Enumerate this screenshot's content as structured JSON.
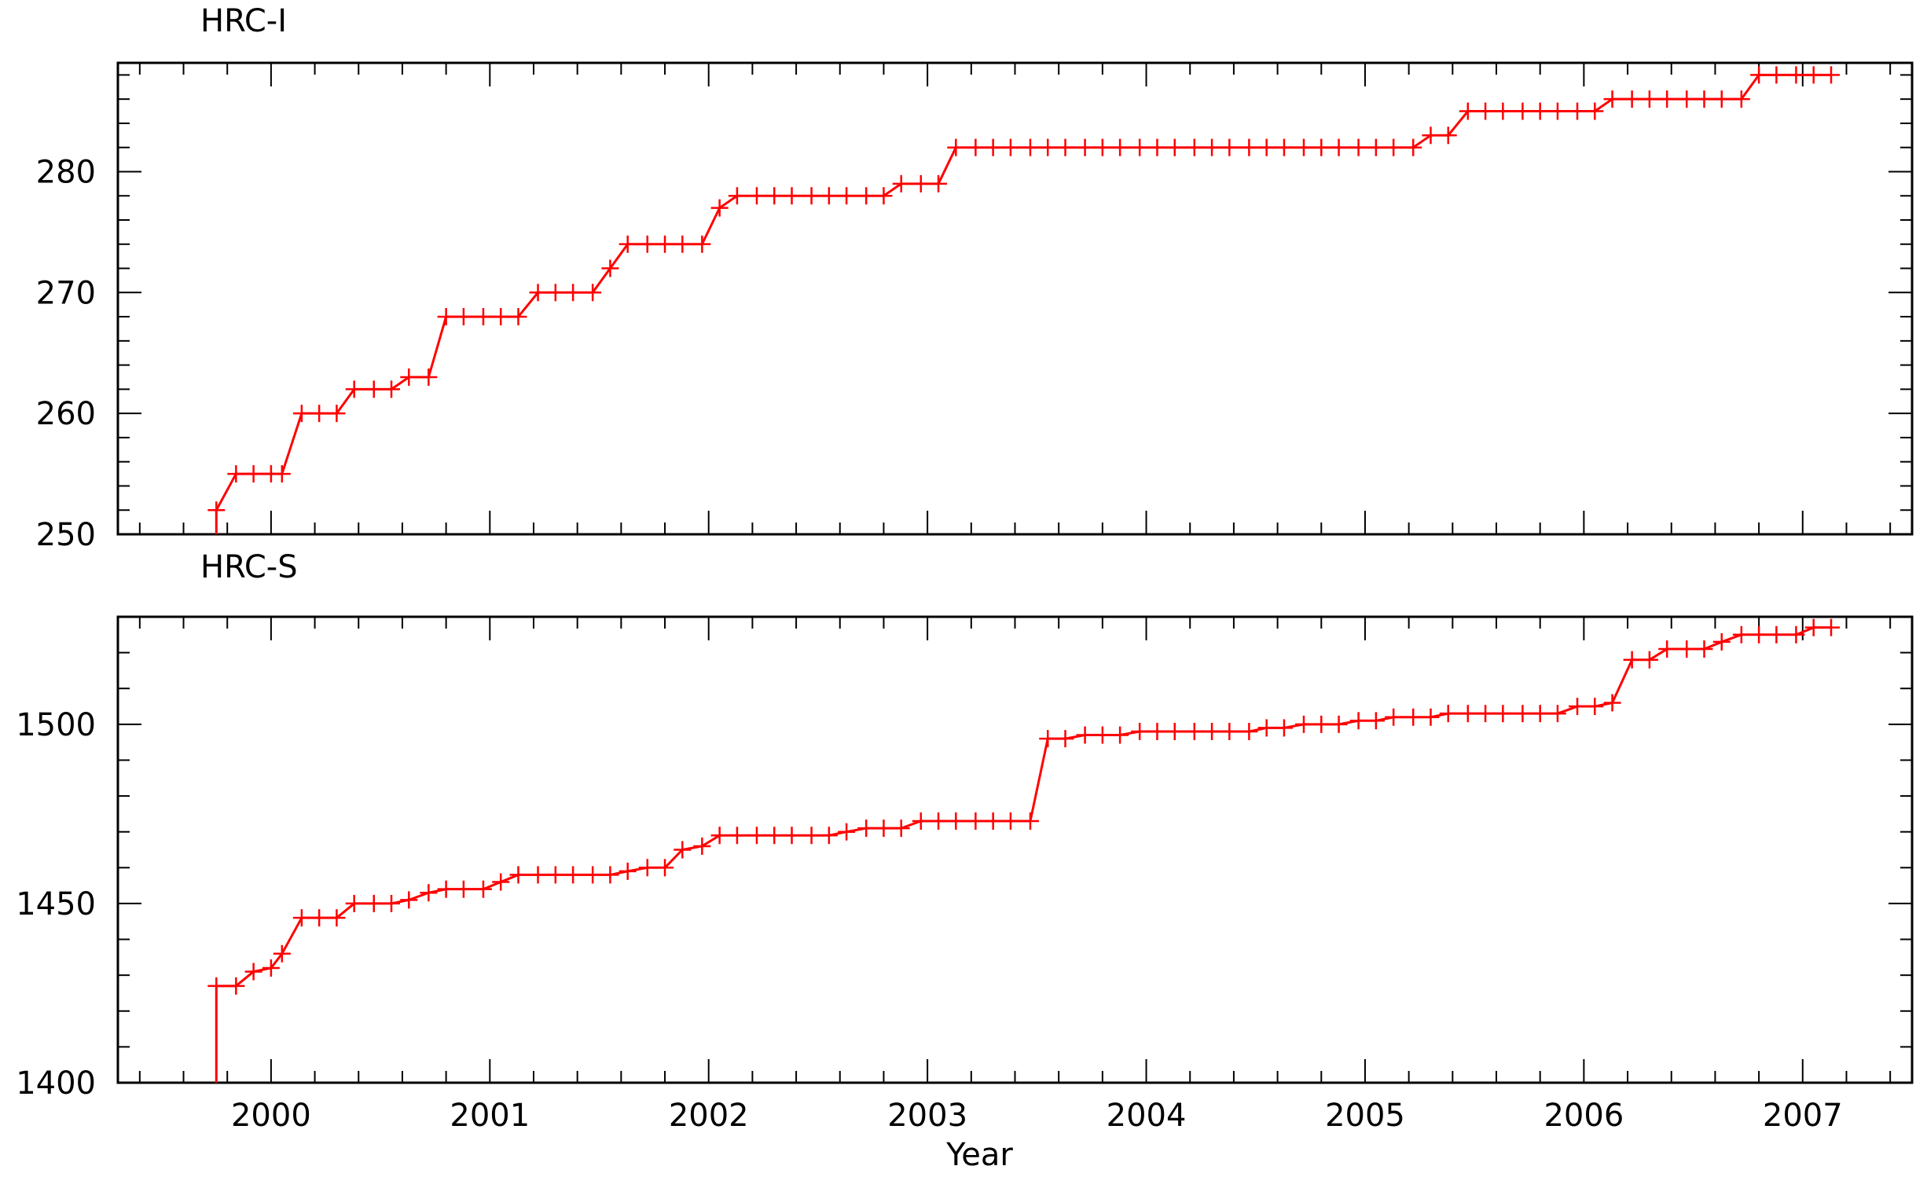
{
  "chart_data": [
    {
      "type": "line",
      "title": "HRC-I",
      "xlabel": "",
      "ylabel": "",
      "xlim": [
        1999.3,
        2007.5
      ],
      "ylim": [
        250,
        289
      ],
      "x_ticks": [
        2000,
        2001,
        2002,
        2003,
        2004,
        2005,
        2006,
        2007
      ],
      "x_tick_labels": [
        "",
        "",
        "",
        "",
        "",
        "",
        "",
        ""
      ],
      "y_ticks": [
        250,
        260,
        270,
        280
      ],
      "y_tick_labels": [
        "250",
        "260",
        "270",
        "280"
      ],
      "color": "#ff0000",
      "marker": "plus",
      "drop_to_axis_at_start": true,
      "series": [
        {
          "x": [
            1999.75,
            1999.84,
            1999.92,
            2000.0,
            2000.05,
            2000.14,
            2000.22,
            2000.3,
            2000.38,
            2000.47,
            2000.55,
            2000.63,
            2000.72,
            2000.8,
            2000.88,
            2000.97,
            2001.05,
            2001.13,
            2001.22,
            2001.3,
            2001.38,
            2001.47,
            2001.55,
            2001.63,
            2001.72,
            2001.8,
            2001.88,
            2001.97,
            2002.05,
            2002.13,
            2002.22,
            2002.3,
            2002.38,
            2002.47,
            2002.55,
            2002.63,
            2002.72,
            2002.8,
            2002.88,
            2002.97,
            2003.05,
            2003.13,
            2003.22,
            2003.3,
            2003.38,
            2003.47,
            2003.55,
            2003.63,
            2003.72,
            2003.8,
            2003.88,
            2003.97,
            2004.05,
            2004.13,
            2004.22,
            2004.3,
            2004.38,
            2004.47,
            2004.55,
            2004.63,
            2004.72,
            2004.8,
            2004.88,
            2004.97,
            2005.05,
            2005.13,
            2005.22,
            2005.3,
            2005.38,
            2005.47,
            2005.55,
            2005.63,
            2005.72,
            2005.8,
            2005.88,
            2005.97,
            2006.05,
            2006.13,
            2006.22,
            2006.3,
            2006.38,
            2006.47,
            2006.55,
            2006.63,
            2006.72,
            2006.8,
            2006.88,
            2006.97,
            2007.05,
            2007.13
          ],
          "y": [
            252,
            255,
            255,
            255,
            255,
            260,
            260,
            260,
            262,
            262,
            262,
            263,
            263,
            268,
            268,
            268,
            268,
            268,
            270,
            270,
            270,
            270,
            272,
            274,
            274,
            274,
            274,
            274,
            277,
            278,
            278,
            278,
            278,
            278,
            278,
            278,
            278,
            278,
            279,
            279,
            279,
            282,
            282,
            282,
            282,
            282,
            282,
            282,
            282,
            282,
            282,
            282,
            282,
            282,
            282,
            282,
            282,
            282,
            282,
            282,
            282,
            282,
            282,
            282,
            282,
            282,
            282,
            283,
            283,
            285,
            285,
            285,
            285,
            285,
            285,
            285,
            285,
            286,
            286,
            286,
            286,
            286,
            286,
            286,
            286,
            288,
            288,
            288,
            288,
            288
          ]
        }
      ]
    },
    {
      "type": "line",
      "title": "HRC-S",
      "xlabel": "Year",
      "ylabel": "",
      "xlim": [
        1999.3,
        2007.5
      ],
      "ylim": [
        1400,
        1530
      ],
      "x_ticks": [
        2000,
        2001,
        2002,
        2003,
        2004,
        2005,
        2006,
        2007
      ],
      "x_tick_labels": [
        "2000",
        "2001",
        "2002",
        "2003",
        "2004",
        "2005",
        "2006",
        "2007"
      ],
      "y_ticks": [
        1400,
        1450,
        1500
      ],
      "y_tick_labels": [
        "1400",
        "1450",
        "1500"
      ],
      "color": "#ff0000",
      "marker": "plus",
      "drop_to_axis_at_start": true,
      "series": [
        {
          "x": [
            1999.75,
            1999.84,
            1999.92,
            2000.0,
            2000.05,
            2000.14,
            2000.22,
            2000.3,
            2000.38,
            2000.47,
            2000.55,
            2000.63,
            2000.72,
            2000.8,
            2000.88,
            2000.97,
            2001.05,
            2001.13,
            2001.22,
            2001.3,
            2001.38,
            2001.47,
            2001.55,
            2001.63,
            2001.72,
            2001.8,
            2001.88,
            2001.97,
            2002.05,
            2002.13,
            2002.22,
            2002.3,
            2002.38,
            2002.47,
            2002.55,
            2002.63,
            2002.72,
            2002.8,
            2002.88,
            2002.97,
            2003.05,
            2003.13,
            2003.22,
            2003.3,
            2003.38,
            2003.47,
            2003.55,
            2003.63,
            2003.72,
            2003.8,
            2003.88,
            2003.97,
            2004.05,
            2004.13,
            2004.22,
            2004.3,
            2004.38,
            2004.47,
            2004.55,
            2004.63,
            2004.72,
            2004.8,
            2004.88,
            2004.97,
            2005.05,
            2005.13,
            2005.22,
            2005.3,
            2005.38,
            2005.47,
            2005.55,
            2005.63,
            2005.72,
            2005.8,
            2005.88,
            2005.97,
            2006.05,
            2006.13,
            2006.22,
            2006.3,
            2006.38,
            2006.47,
            2006.55,
            2006.63,
            2006.72,
            2006.8,
            2006.88,
            2006.97,
            2007.05,
            2007.13
          ],
          "y": [
            1427,
            1427,
            1431,
            1432,
            1436,
            1446,
            1446,
            1446,
            1450,
            1450,
            1450,
            1451,
            1453,
            1454,
            1454,
            1454,
            1456,
            1458,
            1458,
            1458,
            1458,
            1458,
            1458,
            1459,
            1460,
            1460,
            1465,
            1466,
            1469,
            1469,
            1469,
            1469,
            1469,
            1469,
            1469,
            1470,
            1471,
            1471,
            1471,
            1473,
            1473,
            1473,
            1473,
            1473,
            1473,
            1473,
            1496,
            1496,
            1497,
            1497,
            1497,
            1498,
            1498,
            1498,
            1498,
            1498,
            1498,
            1498,
            1499,
            1499,
            1500,
            1500,
            1500,
            1501,
            1501,
            1502,
            1502,
            1502,
            1503,
            1503,
            1503,
            1503,
            1503,
            1503,
            1503,
            1505,
            1505,
            1506,
            1518,
            1518,
            1521,
            1521,
            1521,
            1523,
            1525,
            1525,
            1525,
            1525,
            1527,
            1527
          ]
        }
      ]
    }
  ]
}
